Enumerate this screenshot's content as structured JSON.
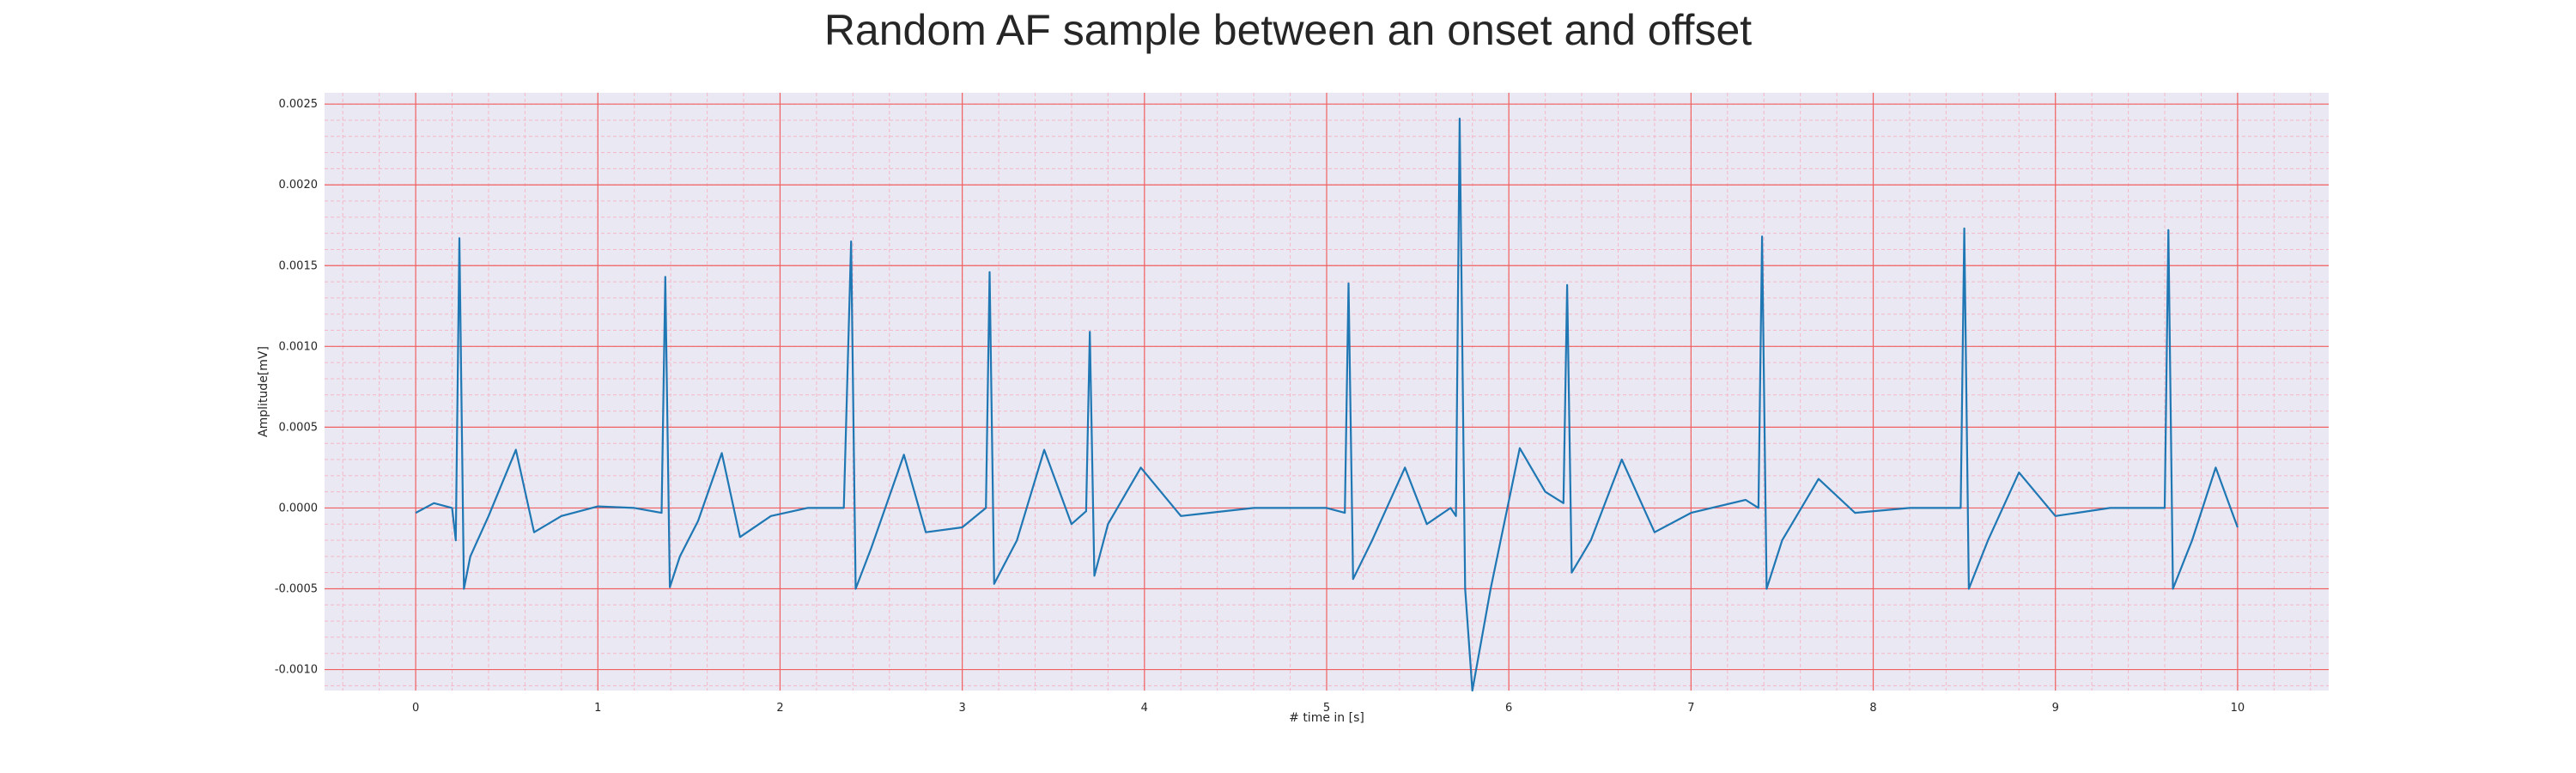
{
  "chart_data": {
    "type": "line",
    "title": "Random AF sample between an onset and offset",
    "xlabel": "# time in [s]",
    "ylabel": "Amplitude[mV]",
    "xlim": [
      -0.5,
      10.5
    ],
    "ylim": [
      -0.00113,
      0.00257
    ],
    "x_ticks": [
      0,
      1,
      2,
      3,
      4,
      5,
      6,
      7,
      8,
      9,
      10
    ],
    "x_tick_labels": [
      "0",
      "1",
      "2",
      "3",
      "4",
      "5",
      "6",
      "7",
      "8",
      "9",
      "10"
    ],
    "y_ticks": [
      -0.001,
      -0.0005,
      0.0,
      0.0005,
      0.001,
      0.0015,
      0.002,
      0.0025
    ],
    "y_tick_labels": [
      "-0.0010",
      "-0.0005",
      "0.0000",
      "0.0005",
      "0.0010",
      "0.0015",
      "0.0020",
      "0.0025"
    ],
    "grid": "major red lines, minor pink lines",
    "legend": "none",
    "colors": {
      "line": "#1f77b4",
      "background": "#eae8f2",
      "major_grid": "#f06060",
      "minor_grid": "#f4b8c8"
    },
    "beats": [
      {
        "t": 0.24,
        "peak": 0.00167,
        "trough": -0.0005,
        "t_wave": 0.00036
      },
      {
        "t": 1.37,
        "peak": 0.00143,
        "trough": -0.00049,
        "t_wave": 0.00034
      },
      {
        "t": 2.39,
        "peak": 0.00165,
        "trough": -0.0005,
        "t_wave": 0.00033
      },
      {
        "t": 3.15,
        "peak": 0.00146,
        "trough": -0.00047,
        "t_wave": 0.00036
      },
      {
        "t": 3.7,
        "peak": 0.00109,
        "trough": -0.00042,
        "t_wave": 0.00025
      },
      {
        "t": 5.12,
        "peak": 0.00139,
        "trough": -0.00044,
        "t_wave": 0.00025
      },
      {
        "t": 5.73,
        "peak": 0.00241,
        "trough": -0.00113,
        "t_wave": 0.00037
      },
      {
        "t": 6.32,
        "peak": 0.00138,
        "trough": -0.0004,
        "t_wave": 0.0003
      },
      {
        "t": 7.39,
        "peak": 0.00168,
        "trough": -0.0005,
        "t_wave": 0.00018
      },
      {
        "t": 8.5,
        "peak": 0.00173,
        "trough": -0.0005,
        "t_wave": 0.00022
      },
      {
        "t": 9.62,
        "peak": 0.00172,
        "trough": -0.0005,
        "t_wave": 0.00025
      }
    ],
    "series": [
      {
        "x": [
          0,
          0.1,
          0.2,
          0.22,
          0.24,
          0.265,
          0.3,
          0.4,
          0.55,
          0.65,
          0.8,
          1.0,
          1.2,
          1.35,
          1.37,
          1.395,
          1.45,
          1.55,
          1.68,
          1.78,
          1.95,
          2.15,
          2.35,
          2.39,
          2.415,
          2.5,
          2.68,
          2.8,
          3.0,
          3.13,
          3.15,
          3.175,
          3.3,
          3.45,
          3.6,
          3.68,
          3.7,
          3.725,
          3.8,
          3.98,
          4.2,
          4.6,
          5.0,
          5.1,
          5.12,
          5.145,
          5.25,
          5.43,
          5.55,
          5.68,
          5.71,
          5.73,
          5.76,
          5.8,
          5.9,
          6.06,
          6.2,
          6.3,
          6.32,
          6.345,
          6.45,
          6.62,
          6.8,
          7.0,
          7.3,
          7.37,
          7.39,
          7.415,
          7.5,
          7.7,
          7.9,
          8.2,
          8.48,
          8.5,
          8.525,
          8.63,
          8.8,
          9.0,
          9.3,
          9.6,
          9.62,
          9.645,
          9.75,
          9.88,
          10.0
        ],
        "y": [
          -3e-05,
          3e-05,
          0.0,
          -0.0002,
          0.00167,
          -0.0005,
          -0.0003,
          -5e-05,
          0.00036,
          -0.00015,
          -5e-05,
          1e-05,
          0.0,
          -3e-05,
          0.00143,
          -0.00049,
          -0.0003,
          -8e-05,
          0.00034,
          -0.00018,
          -5e-05,
          0.0,
          0.0,
          0.00165,
          -0.0005,
          -0.00025,
          0.00033,
          -0.00015,
          -0.00012,
          0.0,
          0.00146,
          -0.00047,
          -0.0002,
          0.00036,
          -0.0001,
          -2e-05,
          0.00109,
          -0.00042,
          -0.0001,
          0.00025,
          -5e-05,
          0.0,
          0.0,
          -3e-05,
          0.00139,
          -0.00044,
          -0.0002,
          0.00025,
          -0.0001,
          0.0,
          -5e-05,
          0.00241,
          -0.0005,
          -0.00113,
          -0.0005,
          0.00037,
          0.0001,
          3e-05,
          0.00138,
          -0.0004,
          -0.0002,
          0.0003,
          -0.00015,
          -3e-05,
          5e-05,
          0.0,
          0.00168,
          -0.0005,
          -0.0002,
          0.00018,
          -3e-05,
          0.0,
          0.0,
          0.00173,
          -0.0005,
          -0.0002,
          0.00022,
          -5e-05,
          0.0,
          0.0,
          0.00172,
          -0.0005,
          -0.0002,
          0.00025,
          -0.00012
        ]
      }
    ]
  }
}
